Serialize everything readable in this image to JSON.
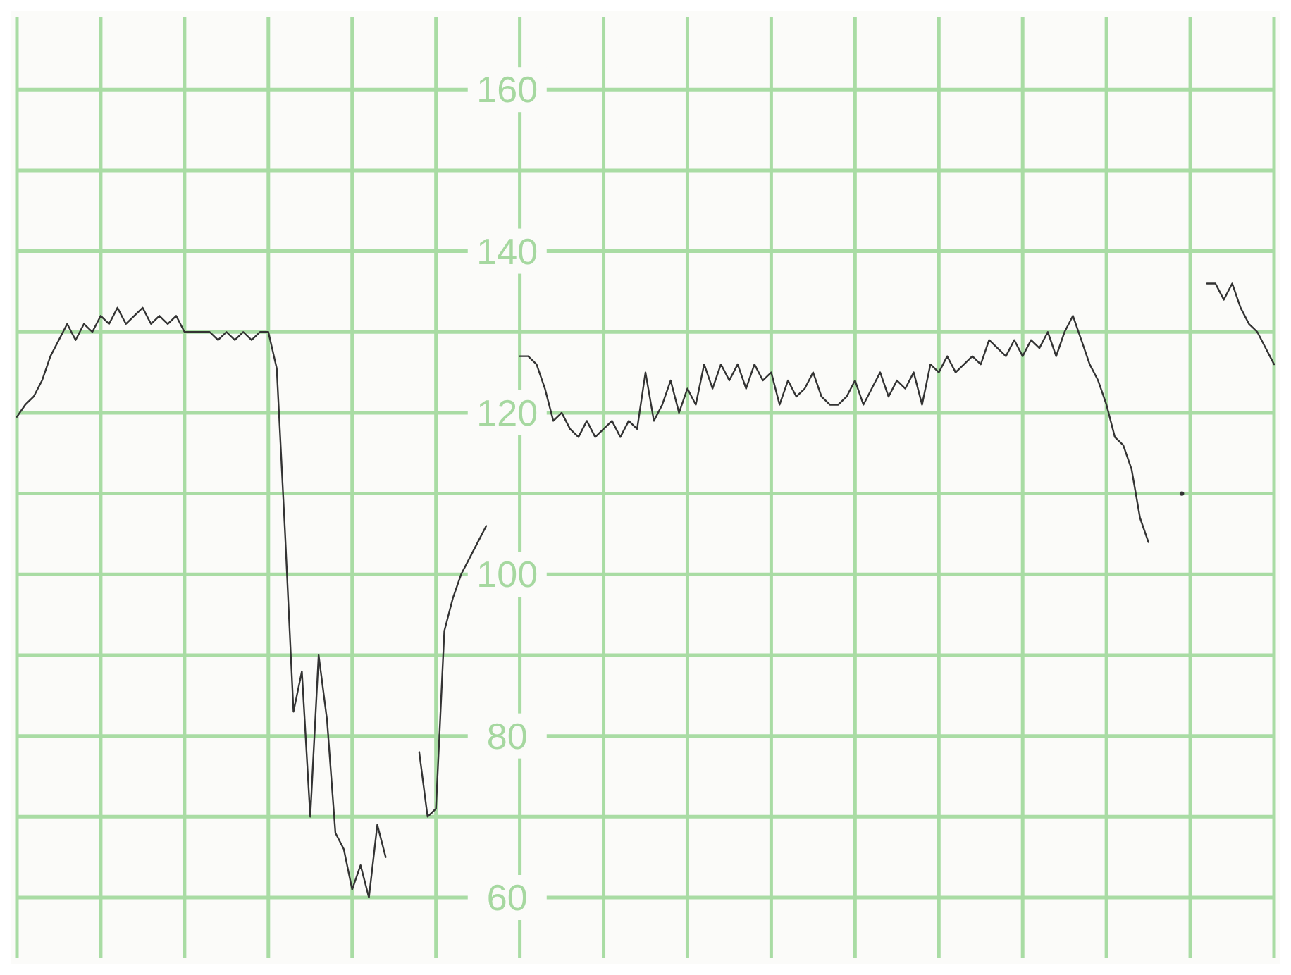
{
  "chart_data": {
    "type": "line",
    "categories": [
      null,
      null,
      null,
      null,
      null,
      null,
      null,
      null,
      null,
      null,
      null,
      null,
      null,
      null,
      null,
      null,
      null,
      null,
      null,
      null,
      null,
      null,
      null,
      null,
      null,
      null,
      null,
      null,
      null,
      null,
      null,
      null,
      null,
      null,
      null,
      null,
      null,
      null,
      null,
      null,
      null,
      null,
      null,
      null,
      null,
      null,
      null,
      null,
      null,
      null,
      null,
      null,
      null,
      null,
      null,
      null,
      null,
      null,
      null,
      null,
      null,
      null,
      null,
      null,
      null,
      null,
      null,
      null,
      null,
      null,
      null,
      null,
      null,
      null,
      null,
      null,
      null,
      null,
      null,
      null,
      null,
      null,
      null,
      null,
      null,
      null,
      null,
      null,
      null,
      null,
      null,
      null,
      null,
      null,
      null,
      null,
      null,
      null,
      null,
      null,
      null,
      null,
      null,
      null,
      null,
      null,
      null,
      null,
      null,
      null,
      null,
      null,
      null,
      null,
      null,
      null,
      null,
      null,
      null,
      null,
      null,
      null,
      null,
      null,
      null,
      null,
      null,
      null,
      null,
      null,
      null,
      null,
      null,
      null,
      null,
      null,
      null,
      null,
      null,
      null,
      null,
      null,
      null,
      null,
      null,
      null,
      null,
      null,
      null,
      null,
      null
    ],
    "series": [
      {
        "color": "#333333",
        "values": [
          119.5,
          121,
          122,
          124,
          127,
          129,
          131,
          129,
          131,
          130,
          132,
          131,
          133,
          131,
          132,
          133,
          131,
          132,
          131,
          132,
          130,
          130,
          130,
          130,
          129,
          130,
          129,
          130,
          129,
          130,
          130,
          125.5,
          105,
          83,
          88,
          70,
          90,
          82,
          68,
          66,
          61,
          64,
          60,
          69,
          65,
          null,
          null,
          null,
          78,
          70,
          71,
          93,
          97,
          100,
          102,
          104,
          106,
          null,
          null,
          null,
          127,
          127,
          126,
          123,
          119,
          120,
          118,
          117,
          119,
          117,
          118,
          119,
          117,
          119,
          118,
          125,
          119,
          121,
          124,
          120,
          123,
          121,
          126,
          123,
          126,
          124,
          126,
          123,
          126,
          124,
          125,
          121,
          124,
          122,
          123,
          125,
          122,
          121,
          121,
          122,
          124,
          121,
          123,
          125,
          122,
          124,
          123,
          125,
          121,
          126,
          125,
          127,
          125,
          126,
          127,
          126,
          129,
          128,
          127,
          129,
          127,
          129,
          128,
          130,
          127,
          130,
          132,
          129,
          126,
          124,
          121,
          117,
          116,
          113,
          107,
          104,
          null,
          null,
          null,
          110,
          null,
          null,
          136,
          136,
          134,
          136,
          133,
          131,
          130,
          128,
          126
        ]
      }
    ],
    "ylim": [
      52.5,
      169
    ],
    "yticks": [
      60,
      {
        "value": 70,
        "label": null
      },
      80,
      {
        "value": 90,
        "label": null
      },
      100,
      {
        "value": 110,
        "label": null
      },
      120,
      {
        "value": 130,
        "label": null
      },
      140,
      {
        "value": 150,
        "label": null
      },
      160
    ],
    "grid": true,
    "tick_labels": "y",
    "line_style": "solid",
    "marker": "none"
  }
}
